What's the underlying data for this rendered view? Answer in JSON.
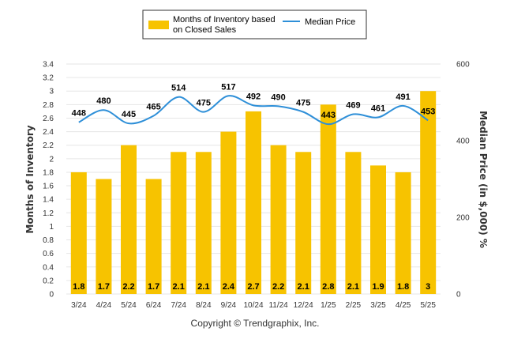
{
  "chart_data": {
    "type": "bar",
    "categories": [
      "3/24",
      "4/24",
      "5/24",
      "6/24",
      "7/24",
      "8/24",
      "9/24",
      "10/24",
      "11/24",
      "12/24",
      "1/25",
      "2/25",
      "3/25",
      "4/25",
      "5/25"
    ],
    "series": [
      {
        "name": "Months of Inventory based on Closed Sales",
        "type": "bar",
        "axis": "left",
        "color": "#f7c300",
        "values": [
          1.8,
          1.7,
          2.2,
          1.7,
          2.1,
          2.1,
          2.4,
          2.7,
          2.2,
          2.1,
          2.8,
          2.1,
          1.9,
          1.8,
          3
        ],
        "labels": [
          "1.8",
          "1.7",
          "2.2",
          "1.7",
          "2.1",
          "2.1",
          "2.4",
          "2.7",
          "2.2",
          "2.1",
          "2.8",
          "2.1",
          "1.9",
          "1.8",
          "3"
        ]
      },
      {
        "name": "Median Price",
        "type": "line",
        "axis": "right",
        "color": "#2e8fd8",
        "values": [
          448,
          480,
          445,
          465,
          514,
          475,
          517,
          492,
          490,
          475,
          443,
          469,
          461,
          491,
          453
        ],
        "labels": [
          "448",
          "480",
          "445",
          "465",
          "514",
          "475",
          "517",
          "492",
          "490",
          "475",
          "443",
          "469",
          "461",
          "491",
          "453"
        ]
      }
    ],
    "legend": {
      "entries": [
        "Months of Inventory based on Closed Sales",
        "Median Price"
      ],
      "bar_lines": [
        "Months of Inventory based",
        "on Closed Sales"
      ],
      "position": "top"
    },
    "ylabel": "Months of Inventory",
    "y2label": "Median Price (in $,000) %",
    "ylim": [
      0,
      3.4
    ],
    "y2lim": [
      0,
      600
    ],
    "y_ticks": [
      "0",
      "0.2",
      "0.4",
      "0.6",
      "0.8",
      "1",
      "1.2",
      "1.4",
      "1.6",
      "1.8",
      "2",
      "2.2",
      "2.4",
      "2.6",
      "2.8",
      "3",
      "3.2",
      "3.4"
    ],
    "y2_ticks": [
      "0",
      "200",
      "400",
      "600"
    ],
    "grid": true,
    "footer": "Copyright © Trendgraphix, Inc."
  }
}
